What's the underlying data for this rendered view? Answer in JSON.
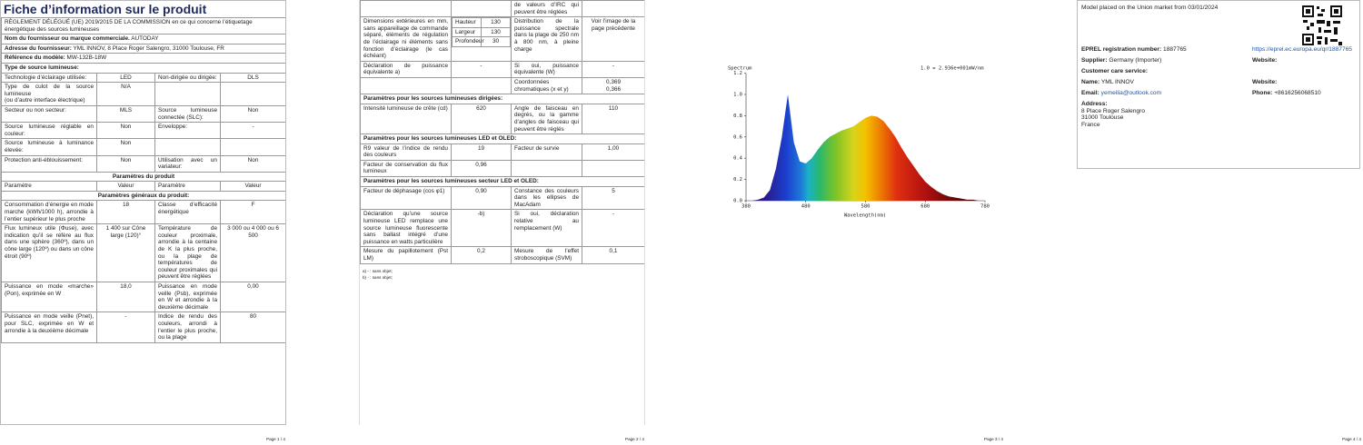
{
  "pages": [
    {
      "title": "Fiche d’information sur le produit",
      "table": [
        {
          "text": "RÈGLEMENT DÉLÉGUÉ (UE) 2019/2015 DE LA COMMISSION en ce qui concerne l’étiquetage énergétique des sources lumineuses"
        },
        {
          "label": "Nom du fournisseur ou marque commerciale.",
          "value": "AUTODAY"
        },
        {
          "label": "Adresse du fournisseur:",
          "value": "YML INNOV, 8 Place Roger Salengro, 31000 Toulouse, FR"
        },
        {
          "label": "Référence du modèle:",
          "value": "MW-132B-18W"
        },
        {
          "section": "Type de source lumineuse:"
        },
        [
          "Technologie d’éclairage utilisée:",
          "LED",
          "Non-dirigée ou dirigée:",
          "DLS"
        ],
        [
          "Type de culot de la source lumineuse\n(ou d’autre interface électrique)",
          "N/A",
          null,
          null
        ],
        [
          "Secteur ou non secteur:",
          "MLS",
          "Source lumineuse connectée (SLC):",
          "Non"
        ],
        [
          "Source lumineuse réglable en couleur:",
          "Non",
          "Enveloppe:",
          "-"
        ],
        [
          "Source lumineuse à luminance élevée:",
          "Non",
          null,
          null
        ],
        [
          "Protection anti-éblouissement:",
          "Non",
          "Utilisation avec un variateur:",
          "Non"
        ],
        {
          "heading": "Paramètres du produit"
        },
        [
          "Paramètre",
          "Valeur",
          "Paramètre",
          "Valeur"
        ],
        {
          "heading": "Paramètres généraux du produit:"
        },
        [
          "Consommation d’énergie en mode marche (kWh/1000 h), arrondie à l’entier supérieur le plus proche",
          "18",
          "Classe d’efficacité énergétique",
          "F"
        ],
        [
          "Flux lumineux utile (Φuse), avec indication qu’il se réfère au flux dans une sphère (360º), dans un cône large (120º) ou dans un cône étroit (90º)",
          "1 400 sur Cône large (120)°",
          "Température de couleur proximale, arrondie à la centaine de K la plus proche, ou la plage de températures de couleur proximales qui peuvent être réglées",
          "3 000 ou 4 000 ou 6 500"
        ],
        [
          "Puissance en mode «marche» (Pon), exprimée en W",
          "18,0",
          "Puissance en mode veille (Psb), exprimée en W et arrondie à la deuxième décimale",
          "0,00"
        ],
        [
          "Puissance en mode veille (Pnet), pour SLC, exprimée en W et arrondie à la deuxième décimale",
          "-",
          "Indice de rendu des couleurs, arrondi à l’entier le plus proche, ou la plage",
          "80"
        ]
      ],
      "page_number": "Page 1 / 4"
    },
    {
      "table": [
        [
          null,
          null,
          "de valeurs d’IRC qui peuvent être réglées",
          null
        ],
        [
          "Dimensions extérieures en mm, sans appareillage de commande séparé, éléments de régulation de l’éclairage ni éléments sans fonction d’éclairage (le cas échéant)",
          [
            [
              "Hauteur",
              130
            ],
            [
              "Largeur",
              130
            ],
            [
              "Profondeur",
              30
            ]
          ],
          "Distribution de la puissance spectrale dans la plage de 250 nm à 800 nm, à pleine charge",
          "Voir l’image de la page précédente"
        ],
        [
          "Déclaration de puissance équivalente a)",
          "-",
          "Si oui, puissance équivalente (W)",
          "-"
        ],
        [
          null,
          null,
          "Coordonnées chromatiques (x et y)",
          "0,369\n0,366"
        ],
        {
          "section": "Paramètres pour les sources lumineuses dirigées:"
        },
        [
          "Intensité lumineuse de crête (cd)",
          "620",
          "Angle de faisceau en degrés, ou la gamme d’angles de faisceau qui peuvent être réglés",
          "110"
        ],
        {
          "section": "Paramètres pour les sources lumineuses LED et OLED:"
        },
        [
          "R9 valeur de l’indice de rendu des couleurs",
          "19",
          "Facteur de survie",
          "1,00"
        ],
        [
          "Facteur de conservation du flux lumineux",
          "0,96",
          null,
          null
        ],
        {
          "section": "Paramètres pour les sources lumineuses secteur LED et OLED:"
        },
        [
          "Facteur de déphasage (cos φ1)",
          "0,90",
          "Constance des couleurs dans les ellipses de MacAdam",
          "5"
        ],
        [
          "Déclaration qu’une source lumineuse LED remplace une source lumineuse fluorescente sans ballast intégré d’une puissance en watts particulière",
          "-b)",
          "Si oui, déclaration relative au remplacement (W)",
          "-"
        ],
        [
          "Mesure du papillotement (Pst LM)",
          "0,2",
          "Mesure de l’effet stroboscopique (SVM)",
          "0,1"
        ]
      ],
      "footnotes": [
        "a) - : sans objet;",
        "b) - : sans objet;"
      ],
      "page_number": "Page 2 / 4"
    },
    {
      "page_number": "Page 3 / 4"
    },
    {
      "market": "Model placed on the Union market from 03/01/2024",
      "eprel_label": "EPREL registration number:",
      "eprel_value": "1887765",
      "eprel_link": "https://eprel.ec.europa.eu/qr/1887765",
      "supplier_label": "Supplier:",
      "supplier_value": "Germany (Importer)",
      "website_label_1": "Website:",
      "care": "Customer care service:",
      "name_label": "Name:",
      "name_value": "YML INNOV",
      "website_label_2": "Website:",
      "email_label": "Email:",
      "email_value": "yemeilia@outlook.com",
      "phone_label": "Phone:",
      "phone_value": "+8616256068510",
      "address_label": "Address:",
      "address_lines": [
        "8 Place Roger Salengro",
        "31000 Toulouse",
        "France"
      ],
      "page_number": "Page 4 / 4"
    }
  ],
  "chart_data": {
    "type": "area",
    "title": "Spectrum",
    "note": "1.0 = 2.936e+001mW/nm",
    "x_label": "Wavelength(nm)",
    "x": [
      380,
      390,
      400,
      410,
      420,
      430,
      440,
      450,
      460,
      470,
      480,
      490,
      500,
      510,
      520,
      530,
      540,
      550,
      560,
      570,
      580,
      590,
      600,
      610,
      620,
      630,
      640,
      650,
      660,
      670,
      680,
      690,
      700,
      710,
      720,
      730,
      740,
      750,
      760,
      770,
      780
    ],
    "values": [
      0,
      0,
      0.01,
      0.03,
      0.1,
      0.3,
      0.6,
      1.0,
      0.55,
      0.37,
      0.35,
      0.4,
      0.48,
      0.55,
      0.6,
      0.63,
      0.66,
      0.68,
      0.7,
      0.74,
      0.78,
      0.8,
      0.79,
      0.75,
      0.68,
      0.6,
      0.5,
      0.41,
      0.33,
      0.25,
      0.18,
      0.13,
      0.09,
      0.06,
      0.04,
      0.03,
      0.02,
      0.01,
      0.01,
      0,
      0
    ],
    "xlim": [
      380,
      780
    ],
    "xticks": [
      380,
      480,
      580,
      680,
      780
    ],
    "ylim": [
      0,
      1.2
    ],
    "yticks": [
      {
        "value": 0,
        "label": "0.0"
      },
      {
        "value": 0.2,
        "label": "0.2"
      },
      {
        "value": 0.4,
        "label": "0.4"
      },
      {
        "value": 0.6,
        "label": "0.6"
      },
      {
        "value": 0.8,
        "label": "0.8"
      },
      {
        "value": 1.0,
        "label": "1.0"
      },
      {
        "value": 1.2,
        "label": "1.2"
      }
    ]
  }
}
